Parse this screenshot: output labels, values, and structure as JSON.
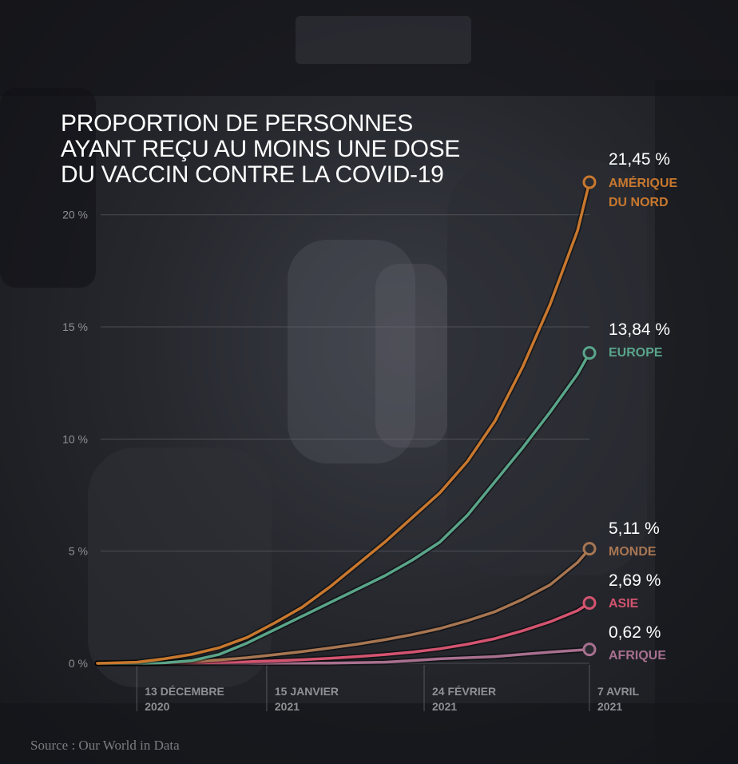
{
  "chart_data": {
    "type": "line",
    "title_lines": [
      "PROPORTION DE PERSONNES",
      "AYANT REÇU AU MOINS UNE DOSE",
      "DU VACCIN CONTRE LA COVID-19"
    ],
    "source": "Source : Our World in Data",
    "x_start": "2020-12-03",
    "x_end": "2021-04-07",
    "ylim": [
      0,
      21.45
    ],
    "y_ticks": [
      {
        "value": 0,
        "label": "0 %"
      },
      {
        "value": 5,
        "label": "5 %"
      },
      {
        "value": 10,
        "label": "10 %"
      },
      {
        "value": 15,
        "label": "15 %"
      },
      {
        "value": 20,
        "label": "20 %"
      }
    ],
    "x_ticks": [
      {
        "date": "2020-12-13",
        "line1": "13 DÉCEMBRE",
        "line2": "2020"
      },
      {
        "date": "2021-01-15",
        "line1": "15 JANVIER",
        "line2": "2021"
      },
      {
        "date": "2021-02-24",
        "line1": "24 FÉVRIER",
        "line2": "2021"
      },
      {
        "date": "2021-04-07",
        "line1": "7 AVRIL",
        "line2": "2021"
      }
    ],
    "grid": true,
    "series": [
      {
        "name": "AMÉRIQUE DU NORD",
        "name_lines": [
          "AMÉRIQUE",
          "DU NORD"
        ],
        "final_label": "21,45 %",
        "color": "#c8782e",
        "points": [
          [
            "2020-12-03",
            0
          ],
          [
            "2020-12-13",
            0.05
          ],
          [
            "2020-12-20",
            0.2
          ],
          [
            "2020-12-27",
            0.4
          ],
          [
            "2021-01-03",
            0.7
          ],
          [
            "2021-01-10",
            1.15
          ],
          [
            "2021-01-17",
            1.8
          ],
          [
            "2021-01-24",
            2.5
          ],
          [
            "2021-01-31",
            3.4
          ],
          [
            "2021-02-07",
            4.4
          ],
          [
            "2021-02-14",
            5.4
          ],
          [
            "2021-02-21",
            6.5
          ],
          [
            "2021-02-28",
            7.6
          ],
          [
            "2021-03-07",
            9.0
          ],
          [
            "2021-03-14",
            10.8
          ],
          [
            "2021-03-21",
            13.2
          ],
          [
            "2021-03-28",
            16.0
          ],
          [
            "2021-04-04",
            19.3
          ],
          [
            "2021-04-07",
            21.45
          ]
        ]
      },
      {
        "name": "EUROPE",
        "name_lines": [
          "EUROPE"
        ],
        "final_label": "13,84 %",
        "color": "#5aa58a",
        "points": [
          [
            "2020-12-03",
            0
          ],
          [
            "2020-12-13",
            0
          ],
          [
            "2020-12-20",
            0.02
          ],
          [
            "2020-12-27",
            0.12
          ],
          [
            "2021-01-03",
            0.4
          ],
          [
            "2021-01-10",
            0.9
          ],
          [
            "2021-01-17",
            1.5
          ],
          [
            "2021-01-24",
            2.1
          ],
          [
            "2021-01-31",
            2.7
          ],
          [
            "2021-02-07",
            3.3
          ],
          [
            "2021-02-14",
            3.9
          ],
          [
            "2021-02-21",
            4.6
          ],
          [
            "2021-02-28",
            5.4
          ],
          [
            "2021-03-07",
            6.6
          ],
          [
            "2021-03-14",
            8.1
          ],
          [
            "2021-03-21",
            9.6
          ],
          [
            "2021-03-28",
            11.2
          ],
          [
            "2021-04-04",
            12.9
          ],
          [
            "2021-04-07",
            13.84
          ]
        ]
      },
      {
        "name": "MONDE",
        "name_lines": [
          "MONDE"
        ],
        "final_label": "5,11 %",
        "color": "#a77652",
        "points": [
          [
            "2020-12-03",
            0
          ],
          [
            "2020-12-13",
            0.01
          ],
          [
            "2020-12-20",
            0.03
          ],
          [
            "2020-12-27",
            0.08
          ],
          [
            "2021-01-03",
            0.15
          ],
          [
            "2021-01-10",
            0.25
          ],
          [
            "2021-01-17",
            0.38
          ],
          [
            "2021-01-24",
            0.52
          ],
          [
            "2021-01-31",
            0.68
          ],
          [
            "2021-02-07",
            0.85
          ],
          [
            "2021-02-14",
            1.05
          ],
          [
            "2021-02-21",
            1.28
          ],
          [
            "2021-02-28",
            1.55
          ],
          [
            "2021-03-07",
            1.9
          ],
          [
            "2021-03-14",
            2.3
          ],
          [
            "2021-03-21",
            2.85
          ],
          [
            "2021-03-28",
            3.5
          ],
          [
            "2021-04-04",
            4.5
          ],
          [
            "2021-04-07",
            5.11
          ]
        ]
      },
      {
        "name": "ASIE",
        "name_lines": [
          "ASIE"
        ],
        "final_label": "2,69 %",
        "color": "#d45470",
        "points": [
          [
            "2020-12-03",
            0
          ],
          [
            "2020-12-13",
            0
          ],
          [
            "2020-12-20",
            0.01
          ],
          [
            "2020-12-27",
            0.02
          ],
          [
            "2021-01-03",
            0.04
          ],
          [
            "2021-01-10",
            0.07
          ],
          [
            "2021-01-17",
            0.11
          ],
          [
            "2021-01-24",
            0.16
          ],
          [
            "2021-01-31",
            0.22
          ],
          [
            "2021-02-07",
            0.3
          ],
          [
            "2021-02-14",
            0.39
          ],
          [
            "2021-02-21",
            0.5
          ],
          [
            "2021-02-28",
            0.65
          ],
          [
            "2021-03-07",
            0.85
          ],
          [
            "2021-03-14",
            1.1
          ],
          [
            "2021-03-21",
            1.45
          ],
          [
            "2021-03-28",
            1.85
          ],
          [
            "2021-04-04",
            2.35
          ],
          [
            "2021-04-07",
            2.69
          ]
        ]
      },
      {
        "name": "AFRIQUE",
        "name_lines": [
          "AFRIQUE"
        ],
        "final_label": "0,62 %",
        "color": "#a8708f",
        "points": [
          [
            "2020-12-03",
            0
          ],
          [
            "2021-01-31",
            0.01
          ],
          [
            "2021-02-14",
            0.05
          ],
          [
            "2021-02-21",
            0.12
          ],
          [
            "2021-02-28",
            0.2
          ],
          [
            "2021-03-07",
            0.25
          ],
          [
            "2021-03-14",
            0.3
          ],
          [
            "2021-03-21",
            0.4
          ],
          [
            "2021-03-28",
            0.5
          ],
          [
            "2021-04-07",
            0.62
          ]
        ]
      }
    ]
  }
}
